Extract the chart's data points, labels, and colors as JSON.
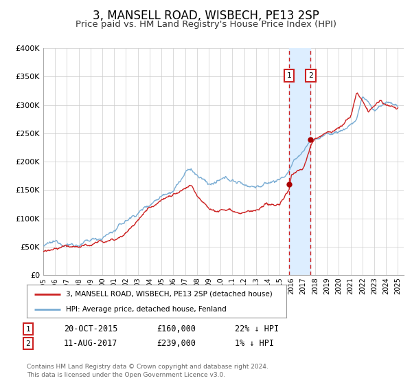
{
  "title": "3, MANSELL ROAD, WISBECH, PE13 2SP",
  "subtitle": "Price paid vs. HM Land Registry's House Price Index (HPI)",
  "title_fontsize": 12,
  "subtitle_fontsize": 9.5,
  "ylim": [
    0,
    400000
  ],
  "ytick_values": [
    0,
    50000,
    100000,
    150000,
    200000,
    250000,
    300000,
    350000,
    400000
  ],
  "ytick_labels": [
    "£0",
    "£50K",
    "£100K",
    "£150K",
    "£200K",
    "£250K",
    "£300K",
    "£350K",
    "£400K"
  ],
  "xlim_start": 1995.0,
  "xlim_end": 2025.5,
  "xtick_years": [
    1995,
    1996,
    1997,
    1998,
    1999,
    2000,
    2001,
    2002,
    2003,
    2004,
    2005,
    2006,
    2007,
    2008,
    2009,
    2010,
    2011,
    2012,
    2013,
    2014,
    2015,
    2016,
    2017,
    2018,
    2019,
    2020,
    2021,
    2022,
    2023,
    2024,
    2025
  ],
  "hpi_color": "#7aadd4",
  "price_color": "#cc2222",
  "marker_color": "#aa0000",
  "highlight_fill": "#ddeeff",
  "highlight_start": 2015.8,
  "highlight_end": 2017.62,
  "transaction1_x": 2015.81,
  "transaction1_y": 160000,
  "transaction2_x": 2017.62,
  "transaction2_y": 239000,
  "label1": "1",
  "label2": "2",
  "legend_line1": "3, MANSELL ROAD, WISBECH, PE13 2SP (detached house)",
  "legend_line2": "HPI: Average price, detached house, Fenland",
  "table_row1": [
    "1",
    "20-OCT-2015",
    "£160,000",
    "22% ↓ HPI"
  ],
  "table_row2": [
    "2",
    "11-AUG-2017",
    "£239,000",
    "1% ↓ HPI"
  ],
  "footnote1": "Contains HM Land Registry data © Crown copyright and database right 2024.",
  "footnote2": "This data is licensed under the Open Government Licence v3.0.",
  "background_color": "#ffffff",
  "grid_color": "#cccccc",
  "hpi_keypoints_x": [
    1995,
    1996,
    1997,
    1998,
    1999,
    2000,
    2001,
    2002,
    2003,
    2004,
    2005,
    2006,
    2007,
    2007.5,
    2008,
    2009,
    2010,
    2011,
    2012,
    2013,
    2014,
    2015,
    2015.5,
    2016,
    2016.5,
    2017,
    2017.5,
    2018,
    2019,
    2020,
    2020.5,
    2021,
    2021.5,
    2022,
    2022.5,
    2023,
    2023.5,
    2024,
    2024.5,
    2025
  ],
  "hpi_keypoints_y": [
    52000,
    52000,
    55000,
    56000,
    60000,
    68000,
    80000,
    95000,
    110000,
    128000,
    148000,
    165000,
    192000,
    198000,
    185000,
    170000,
    172000,
    170000,
    163000,
    163000,
    167000,
    175000,
    182000,
    198000,
    210000,
    222000,
    238000,
    245000,
    252000,
    258000,
    262000,
    272000,
    280000,
    320000,
    310000,
    295000,
    302000,
    308000,
    300000,
    298000
  ],
  "price_keypoints_x": [
    1995,
    1996,
    1997,
    1998,
    1999,
    2000,
    2001,
    2002,
    2003,
    2004,
    2005,
    2006,
    2007,
    2007.5,
    2008,
    2009,
    2009.5,
    2010,
    2011,
    2012,
    2013,
    2014,
    2015,
    2015.81,
    2016,
    2016.5,
    2017,
    2017.62,
    2018,
    2019,
    2020,
    2020.5,
    2021,
    2021.5,
    2022,
    2022.5,
    2023,
    2023.5,
    2024,
    2024.5,
    2025
  ],
  "price_keypoints_y": [
    42000,
    43000,
    46000,
    48000,
    50000,
    54000,
    58000,
    75000,
    95000,
    118000,
    138000,
    148000,
    155000,
    157000,
    142000,
    128000,
    125000,
    128000,
    132000,
    128000,
    128000,
    130000,
    132000,
    160000,
    185000,
    192000,
    198000,
    239000,
    250000,
    260000,
    268000,
    278000,
    290000,
    330000,
    318000,
    298000,
    306000,
    312000,
    305000,
    298000,
    295000
  ]
}
